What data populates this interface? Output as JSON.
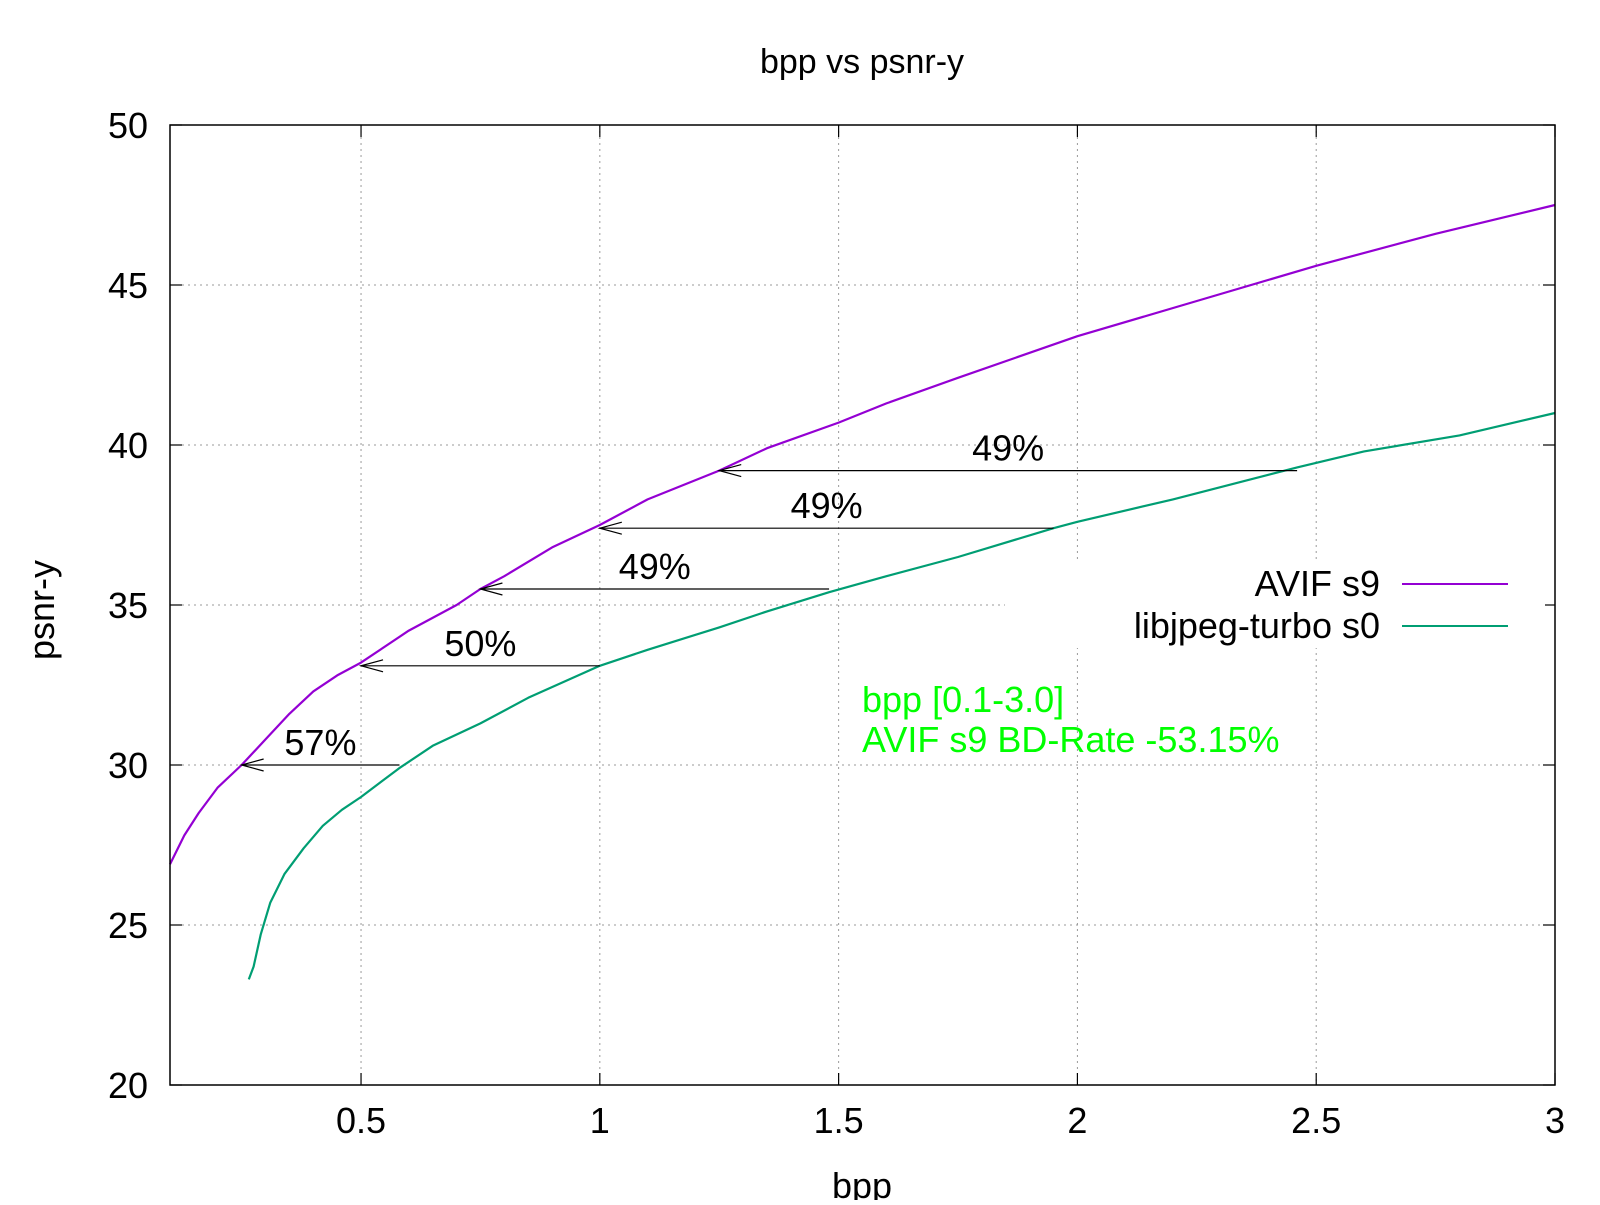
{
  "chart_data": {
    "type": "line",
    "title": "bpp vs psnr-y",
    "xlabel": "bpp",
    "ylabel": "psnr-y",
    "xlim": [
      0.1,
      3.0
    ],
    "ylim": [
      20,
      50
    ],
    "xticks": [
      0.5,
      1,
      1.5,
      2,
      2.5,
      3
    ],
    "xtick_labels": [
      "0.5",
      "1",
      "1.5",
      "2",
      "2.5",
      "3"
    ],
    "yticks": [
      20,
      25,
      30,
      35,
      40,
      45,
      50
    ],
    "ytick_labels": [
      "20",
      "25",
      "30",
      "35",
      "40",
      "45",
      "50"
    ],
    "grid": true,
    "legend_position": "right",
    "series": [
      {
        "name": "AVIF s9",
        "color": "#9400d3",
        "x": [
          0.1,
          0.13,
          0.16,
          0.2,
          0.25,
          0.3,
          0.35,
          0.4,
          0.45,
          0.5,
          0.6,
          0.7,
          0.75,
          0.8,
          0.9,
          1.0,
          1.1,
          1.25,
          1.35,
          1.5,
          1.6,
          1.75,
          2.0,
          2.25,
          2.5,
          2.75,
          3.0
        ],
        "y": [
          26.9,
          27.8,
          28.5,
          29.3,
          30.0,
          30.8,
          31.6,
          32.3,
          32.8,
          33.2,
          34.2,
          35.0,
          35.5,
          35.9,
          36.8,
          37.5,
          38.3,
          39.2,
          39.9,
          40.7,
          41.3,
          42.1,
          43.4,
          44.5,
          45.6,
          46.6,
          47.5
        ]
      },
      {
        "name": "libjpeg-turbo s0",
        "color": "#009e73",
        "x": [
          0.265,
          0.275,
          0.29,
          0.31,
          0.34,
          0.38,
          0.42,
          0.46,
          0.5,
          0.58,
          0.65,
          0.75,
          0.85,
          1.0,
          1.1,
          1.25,
          1.35,
          1.48,
          1.6,
          1.75,
          1.95,
          2.0,
          2.2,
          2.46,
          2.6,
          2.8,
          3.0
        ],
        "y": [
          23.3,
          23.7,
          24.7,
          25.7,
          26.6,
          27.4,
          28.1,
          28.6,
          29.0,
          29.9,
          30.6,
          31.3,
          32.1,
          33.1,
          33.6,
          34.3,
          34.8,
          35.4,
          35.9,
          36.5,
          37.4,
          37.6,
          38.3,
          39.3,
          39.8,
          40.3,
          41.0
        ]
      }
    ],
    "annotations": [
      {
        "label": "57%",
        "x_from": 0.58,
        "x_to": 0.25,
        "y": 30.0
      },
      {
        "label": "50%",
        "x_from": 1.0,
        "x_to": 0.5,
        "y": 33.1
      },
      {
        "label": "49%",
        "x_from": 1.48,
        "x_to": 0.75,
        "y": 35.5
      },
      {
        "label": "49%",
        "x_from": 1.95,
        "x_to": 1.0,
        "y": 37.4
      },
      {
        "label": "49%",
        "x_from": 2.46,
        "x_to": 1.25,
        "y": 39.2
      }
    ],
    "notes": [
      "bpp [0.1-3.0]",
      "AVIF s9 BD-Rate -53.15%"
    ],
    "note_color": "#00ff00"
  }
}
